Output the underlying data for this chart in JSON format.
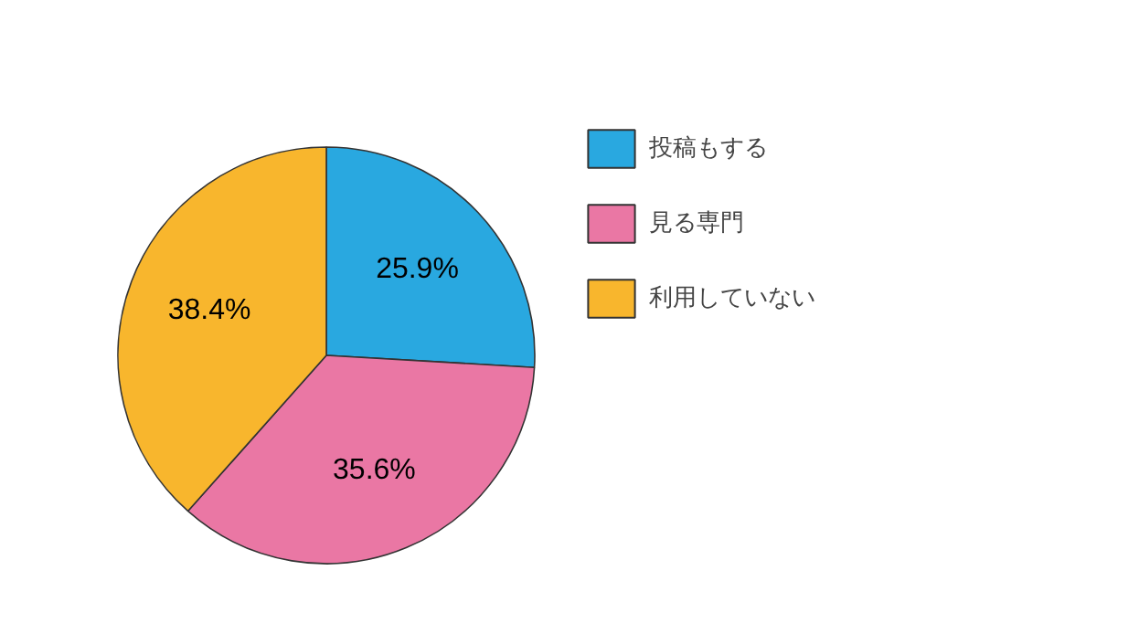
{
  "chart_data": {
    "type": "pie",
    "categories": [
      "投稿もする",
      "見る専門",
      "利用していない"
    ],
    "values": [
      25.9,
      35.6,
      38.4
    ],
    "value_labels": [
      "25.9%",
      "35.6%",
      "38.4%"
    ],
    "colors": [
      "#29a8e0",
      "#ea77a4",
      "#f8b62d"
    ],
    "legend": "right"
  }
}
